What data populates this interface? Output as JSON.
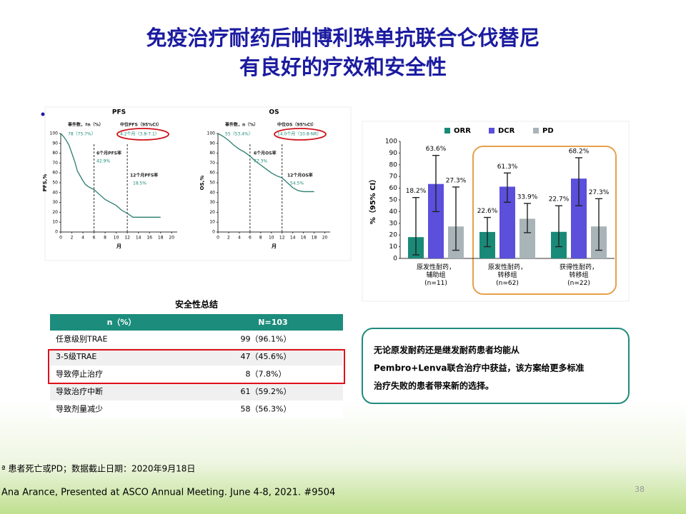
{
  "header": {
    "title_lines": [
      "免疫治疗耐药后帕博利珠单抗联合仑伐替尼",
      "有良好的疗效和安全性"
    ]
  },
  "chart_data": [
    {
      "type": "line",
      "title": "PFS",
      "y_label": "PFS,%",
      "x_label": "月",
      "annotations": [
        "事件数，ªn（%）",
        "78（75.7%）",
        "中位PFS（95%CI）",
        "4.2个月（3.8-7.1）",
        "6个月PFS率",
        "42.9%",
        "12个月PFS率",
        "18.5%"
      ],
      "reference_x": [
        6,
        12
      ],
      "xlim": [
        0,
        21
      ],
      "xticks": [
        0,
        2,
        4,
        6,
        8,
        10,
        12,
        14,
        16,
        18,
        20
      ],
      "ylim": [
        0,
        100
      ],
      "yticks": [
        0,
        10,
        20,
        30,
        40,
        50,
        60,
        70,
        80,
        90,
        100
      ],
      "series": [
        {
          "color": "#2a7d6f",
          "x": [
            0,
            0.5,
            1,
            1.5,
            2,
            2.5,
            3,
            4,
            4.5,
            5,
            6,
            7,
            8,
            9,
            10,
            11,
            12,
            13,
            18
          ],
          "values": [
            100,
            97,
            93,
            88,
            80,
            72,
            62,
            52,
            48,
            46,
            43,
            38,
            33,
            30,
            27,
            22,
            19,
            15,
            15
          ]
        }
      ]
    },
    {
      "type": "line",
      "title": "OS",
      "y_label": "OS,%",
      "x_label": "月",
      "annotations": [
        "事件数，n（%）",
        "55（53.4%）",
        "中位OS（95%CI）",
        "14.0个月（10.8-NR）",
        "6个月OS率",
        "77.3%",
        "12个月OS率",
        "54.5%"
      ],
      "reference_x": [
        6,
        12
      ],
      "xlim": [
        0,
        21
      ],
      "xticks": [
        0,
        2,
        4,
        6,
        8,
        10,
        12,
        14,
        16,
        18,
        20
      ],
      "ylim": [
        0,
        100
      ],
      "yticks": [
        0,
        10,
        20,
        30,
        40,
        50,
        60,
        70,
        80,
        90,
        100
      ],
      "series": [
        {
          "color": "#2a7d6f",
          "x": [
            0,
            1,
            2,
            3,
            4,
            5,
            6,
            7,
            8,
            9,
            10,
            11,
            12,
            13,
            14,
            15,
            16,
            18
          ],
          "values": [
            100,
            97,
            93,
            88,
            84,
            81,
            77,
            72,
            68,
            64,
            60,
            57,
            55,
            50,
            45,
            42,
            41,
            41
          ]
        }
      ]
    },
    {
      "type": "bar",
      "y_label": "%（95% CI）",
      "categories": [
        "原发性耐药，\n辅助组\n(n=11)",
        "原发性耐药，\n转移组\n(n=62)",
        "获得性耐药，\n转移组\n(n=22)"
      ],
      "ylim": [
        0,
        100
      ],
      "yticks": [
        0,
        10,
        20,
        30,
        40,
        50,
        60,
        70,
        80,
        90,
        100
      ],
      "series": [
        {
          "name": "ORR",
          "color": "#1a8a78",
          "values": [
            18.2,
            22.6,
            22.7
          ],
          "value_labels": [
            "18.2%",
            "22.6%",
            "22.7%"
          ],
          "ci_low": [
            3,
            10,
            10
          ],
          "ci_high": [
            52,
            35,
            45
          ]
        },
        {
          "name": "DCR",
          "color": "#5b4fdc",
          "values": [
            63.6,
            61.3,
            68.2
          ],
          "value_labels": [
            "63.6%",
            "61.3%",
            "68.2%"
          ],
          "ci_low": [
            40,
            48,
            45
          ],
          "ci_high": [
            88,
            73,
            86
          ]
        },
        {
          "name": "PD",
          "color": "#a9b4b8",
          "values": [
            27.3,
            33.9,
            27.3
          ],
          "value_labels": [
            "27.3%",
            "33.9%",
            "27.3%"
          ],
          "ci_low": [
            7,
            22,
            7
          ],
          "ci_high": [
            61,
            47,
            51
          ]
        }
      ]
    }
  ],
  "table": {
    "title": "安全性总结",
    "header": [
      "n（%）",
      "N=103"
    ],
    "rows": [
      [
        "任意级别TRAE",
        "99（96.1%）"
      ],
      [
        "3-5级TRAE",
        "47（45.6%）"
      ],
      [
        "导致停止治疗",
        "8（7.8%）"
      ],
      [
        "导致治疗中断",
        "61（59.2%）"
      ],
      [
        "导致剂量减少",
        "58（56.3%）"
      ]
    ]
  },
  "callout": {
    "lines": [
      "无论原发耐药还是继发耐药患者均能从",
      "Pembro+Lenva联合治疗中获益，该方案给更多标准",
      "治疗失败的患者带来新的选择。"
    ]
  },
  "footnote": "ª 患者死亡或PD；数据截止日期：2020年9月18日",
  "reference": "Ana Arance, Presented at ASCO Annual Meeting. June 4-8, 2021. #9504",
  "page_number": "38"
}
